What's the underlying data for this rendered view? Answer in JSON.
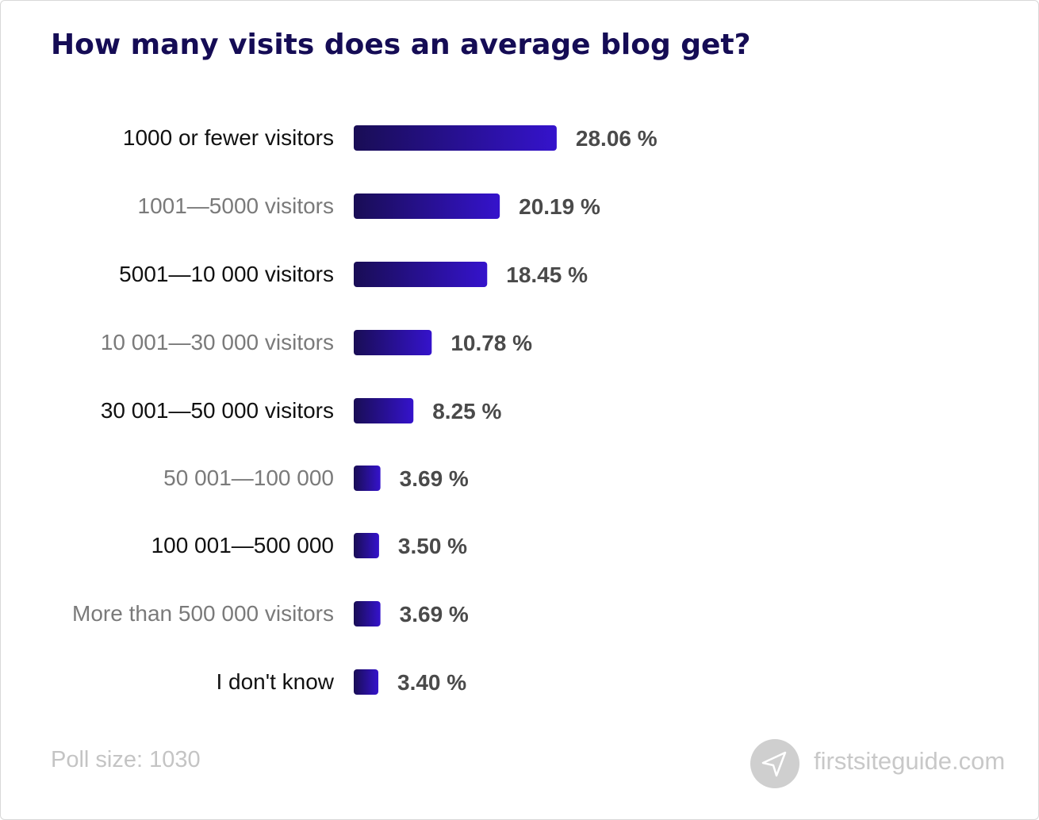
{
  "chart_data": {
    "type": "bar",
    "orientation": "horizontal",
    "title": "How many visits does an average blog get?",
    "categories": [
      "1000 or fewer visitors",
      "1001—5000 visitors",
      "5001—10 000 visitors",
      "10 001—30 000 visitors",
      "30 001—50 000 visitors",
      "50 001—100 000",
      "100 001—500 000",
      "More than 500 000 visitors",
      "I don't know"
    ],
    "values": [
      28.06,
      20.19,
      18.45,
      10.78,
      8.25,
      3.69,
      3.5,
      3.69,
      3.4
    ],
    "value_labels": [
      "28.06 %",
      "20.19 %",
      "18.45 %",
      "10.78 %",
      "8.25 %",
      "3.69 %",
      "3.50 %",
      "3.69 %",
      "3.40 %"
    ],
    "xlabel": "",
    "ylabel": "",
    "grid": false,
    "colors": {
      "bar_start": "#190d55",
      "bar_end": "#3513cc",
      "label_dark": "#111111",
      "label_light": "#7a7a7a",
      "value": "#4a4a4a"
    }
  },
  "footer": {
    "poll_size": "Poll size: 1030",
    "site": "firstsiteguide.com",
    "logo_icon": "paper-plane-icon"
  }
}
